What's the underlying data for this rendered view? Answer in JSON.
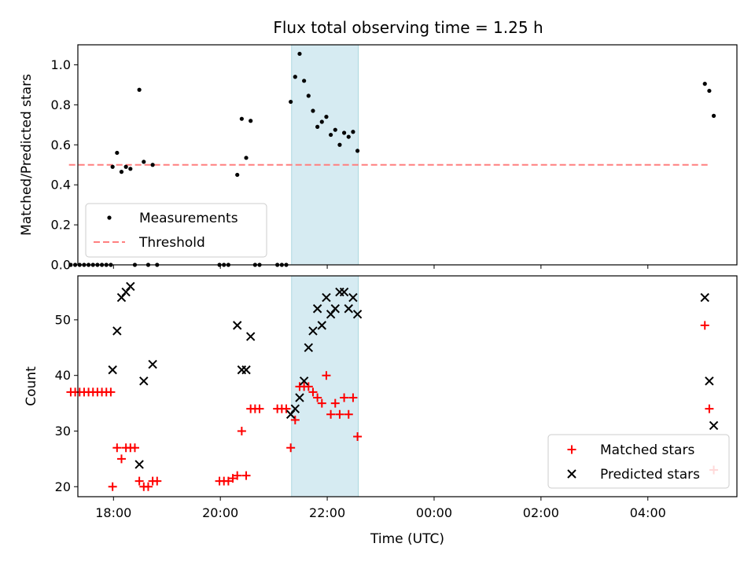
{
  "chart_data": [
    {
      "type": "scatter",
      "title": "Flux total observing time = 1.25 h",
      "xlabel": "",
      "ylabel": "Matched/Predicted stars",
      "xlim": [
        "17:20",
        "05:40"
      ],
      "ylim": [
        0,
        1.1
      ],
      "yticks": [
        "0.0",
        "0.2",
        "0.4",
        "0.6",
        "0.8",
        "1.0"
      ],
      "xticks": [
        "18:00",
        "20:00",
        "22:00",
        "00:00",
        "02:00",
        "04:00"
      ],
      "xtick_labels_shown": false,
      "highlight_span": [
        "21:20",
        "22:35"
      ],
      "legend": {
        "position": "lower-left",
        "entries": [
          "Measurements",
          "Threshold"
        ]
      },
      "threshold": {
        "name": "Threshold",
        "value": 0.5,
        "x_range": [
          "17:10",
          "05:10"
        ],
        "color": "#ff7f7f"
      },
      "series": [
        {
          "name": "Measurements",
          "color": "#000000",
          "marker": "dot",
          "points": [
            [
              "17:12",
              0
            ],
            [
              "17:17",
              0
            ],
            [
              "17:22",
              0
            ],
            [
              "17:27",
              0
            ],
            [
              "17:32",
              0
            ],
            [
              "17:37",
              0
            ],
            [
              "17:42",
              0
            ],
            [
              "17:47",
              0
            ],
            [
              "17:52",
              0
            ],
            [
              "17:57",
              0
            ],
            [
              "17:59",
              0.49
            ],
            [
              "18:04",
              0.56
            ],
            [
              "18:09",
              0.465
            ],
            [
              "18:14",
              0.49
            ],
            [
              "18:19",
              0.48
            ],
            [
              "18:24",
              0
            ],
            [
              "18:29",
              0.875
            ],
            [
              "18:34",
              0.515
            ],
            [
              "18:39",
              0
            ],
            [
              "18:44",
              0.5
            ],
            [
              "18:49",
              0
            ],
            [
              "19:59",
              0
            ],
            [
              "20:04",
              0
            ],
            [
              "20:09",
              0
            ],
            [
              "20:19",
              0.45
            ],
            [
              "20:24",
              0.73
            ],
            [
              "20:29",
              0.535
            ],
            [
              "20:34",
              0.72
            ],
            [
              "20:39",
              0
            ],
            [
              "20:44",
              0
            ],
            [
              "21:04",
              0
            ],
            [
              "21:09",
              0
            ],
            [
              "21:14",
              0
            ],
            [
              "21:19",
              0.815
            ],
            [
              "21:24",
              0.94
            ],
            [
              "21:29",
              1.055
            ],
            [
              "21:34",
              0.92
            ],
            [
              "21:39",
              0.845
            ],
            [
              "21:44",
              0.77
            ],
            [
              "21:49",
              0.69
            ],
            [
              "21:54",
              0.715
            ],
            [
              "21:59",
              0.74
            ],
            [
              "22:04",
              0.65
            ],
            [
              "22:09",
              0.675
            ],
            [
              "22:14",
              0.6
            ],
            [
              "22:19",
              0.66
            ],
            [
              "22:24",
              0.64
            ],
            [
              "22:29",
              0.665
            ],
            [
              "22:34",
              0.57
            ],
            [
              "05:04",
              0.905
            ],
            [
              "05:09",
              0.87
            ],
            [
              "05:14",
              0.745
            ]
          ]
        }
      ]
    },
    {
      "type": "scatter",
      "title": "",
      "xlabel": "Time (UTC)",
      "ylabel": "Count",
      "xlim": [
        "17:20",
        "05:40"
      ],
      "ylim": [
        18.2,
        57.9
      ],
      "yticks": [
        "20",
        "30",
        "40",
        "50"
      ],
      "xticks": [
        "18:00",
        "20:00",
        "22:00",
        "00:00",
        "02:00",
        "04:00"
      ],
      "highlight_span": [
        "21:20",
        "22:35"
      ],
      "legend": {
        "position": "lower-right",
        "entries": [
          "Matched stars",
          "Predicted stars"
        ]
      },
      "series": [
        {
          "name": "Matched stars",
          "color": "#ff0000",
          "marker": "plus",
          "points": [
            [
              "17:12",
              37
            ],
            [
              "17:17",
              37
            ],
            [
              "17:22",
              37
            ],
            [
              "17:27",
              37
            ],
            [
              "17:32",
              37
            ],
            [
              "17:37",
              37
            ],
            [
              "17:42",
              37
            ],
            [
              "17:47",
              37
            ],
            [
              "17:52",
              37
            ],
            [
              "17:57",
              37
            ],
            [
              "17:59",
              20
            ],
            [
              "18:04",
              27
            ],
            [
              "18:09",
              25
            ],
            [
              "18:14",
              27
            ],
            [
              "18:19",
              27
            ],
            [
              "18:24",
              27
            ],
            [
              "18:29",
              21
            ],
            [
              "18:34",
              20
            ],
            [
              "18:39",
              20
            ],
            [
              "18:44",
              21
            ],
            [
              "18:49",
              21
            ],
            [
              "19:59",
              21
            ],
            [
              "20:04",
              21
            ],
            [
              "20:09",
              21
            ],
            [
              "20:14",
              21.5
            ],
            [
              "20:19",
              22
            ],
            [
              "20:24",
              30
            ],
            [
              "20:29",
              22
            ],
            [
              "20:34",
              34
            ],
            [
              "20:39",
              34
            ],
            [
              "20:44",
              34
            ],
            [
              "21:04",
              34
            ],
            [
              "21:09",
              34
            ],
            [
              "21:14",
              34
            ],
            [
              "21:19",
              27
            ],
            [
              "21:24",
              32
            ],
            [
              "21:29",
              38
            ],
            [
              "21:34",
              38
            ],
            [
              "21:39",
              38
            ],
            [
              "21:44",
              37
            ],
            [
              "21:49",
              36
            ],
            [
              "21:54",
              35
            ],
            [
              "21:59",
              40
            ],
            [
              "22:04",
              33
            ],
            [
              "22:09",
              35
            ],
            [
              "22:14",
              33
            ],
            [
              "22:19",
              36
            ],
            [
              "22:24",
              33
            ],
            [
              "22:29",
              36
            ],
            [
              "22:34",
              29
            ],
            [
              "05:04",
              49
            ],
            [
              "05:09",
              34
            ],
            [
              "05:14",
              23
            ]
          ]
        },
        {
          "name": "Predicted stars",
          "color": "#000000",
          "marker": "x",
          "points": [
            [
              "17:59",
              41
            ],
            [
              "18:04",
              48
            ],
            [
              "18:09",
              54
            ],
            [
              "18:14",
              55
            ],
            [
              "18:19",
              56
            ],
            [
              "18:29",
              24
            ],
            [
              "18:34",
              39
            ],
            [
              "18:44",
              42
            ],
            [
              "20:19",
              49
            ],
            [
              "20:24",
              41
            ],
            [
              "20:29",
              41
            ],
            [
              "20:34",
              47
            ],
            [
              "21:19",
              33
            ],
            [
              "21:24",
              34
            ],
            [
              "21:29",
              36
            ],
            [
              "21:34",
              39
            ],
            [
              "21:39",
              45
            ],
            [
              "21:44",
              48
            ],
            [
              "21:49",
              52
            ],
            [
              "21:54",
              49
            ],
            [
              "21:59",
              54
            ],
            [
              "22:04",
              51
            ],
            [
              "22:09",
              52
            ],
            [
              "22:14",
              55
            ],
            [
              "22:19",
              55
            ],
            [
              "22:24",
              52
            ],
            [
              "22:29",
              54
            ],
            [
              "22:34",
              51
            ],
            [
              "05:04",
              54
            ],
            [
              "05:09",
              39
            ],
            [
              "05:14",
              31
            ]
          ]
        }
      ]
    }
  ]
}
